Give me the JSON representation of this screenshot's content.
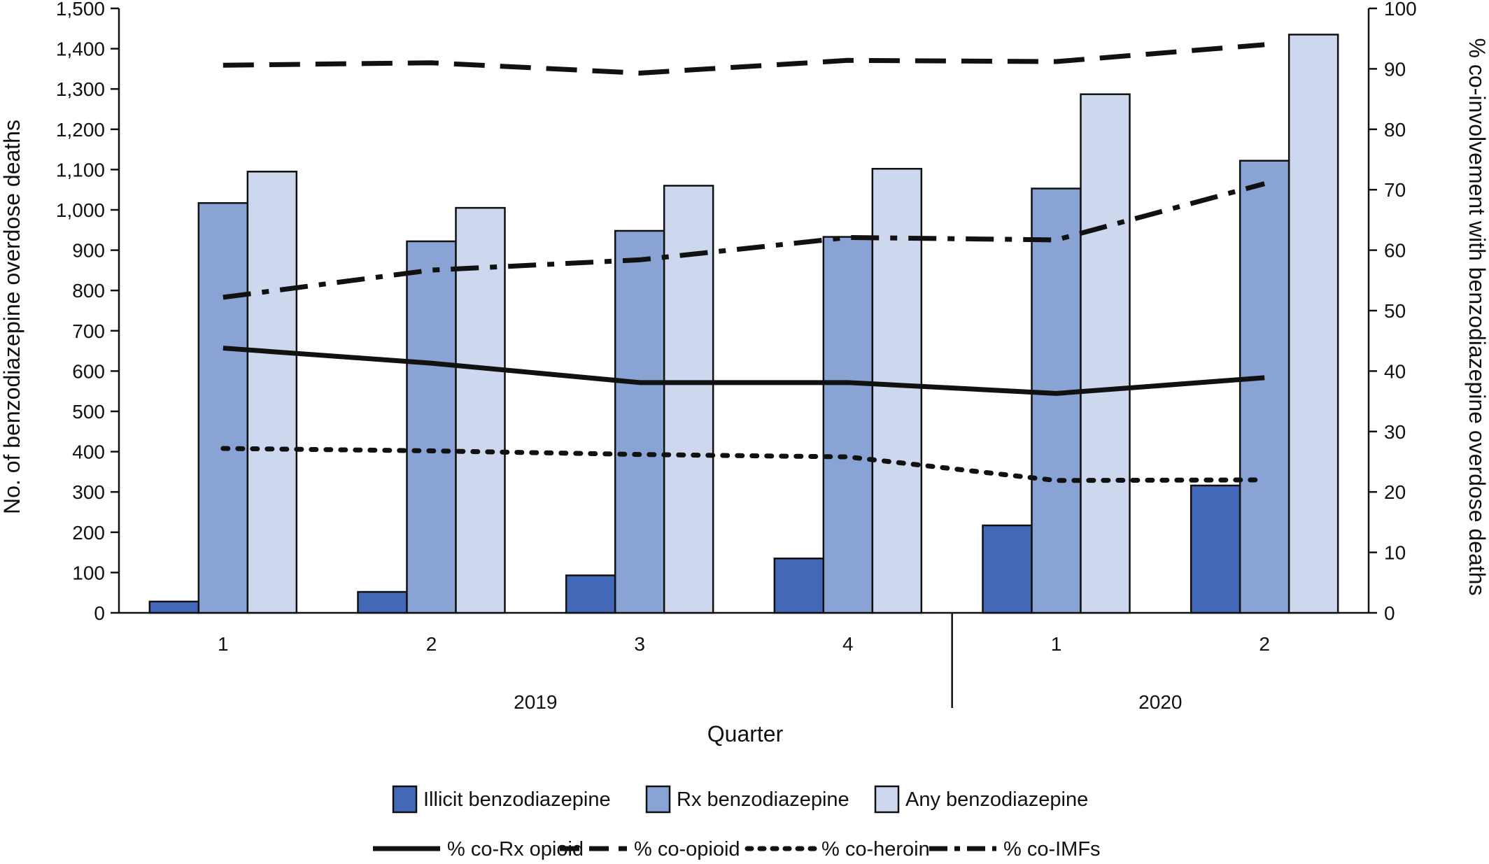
{
  "chart_data": {
    "type": "bar",
    "title": "",
    "xlabel": "Quarter",
    "ylabel": "No. of benzodiazepine overdose deaths",
    "y2label": "% co-involvement with benzodiazepine overdose deaths",
    "categories": [
      "1",
      "2",
      "3",
      "4",
      "1",
      "2"
    ],
    "groups": [
      {
        "label": "2019",
        "count": 4
      },
      {
        "label": "2020",
        "count": 2
      }
    ],
    "ylim": [
      0,
      1500
    ],
    "yticks": [
      "0",
      "100",
      "200",
      "300",
      "400",
      "500",
      "600",
      "700",
      "800",
      "900",
      "1,000",
      "1,100",
      "1,200",
      "1,300",
      "1,400",
      "1,500"
    ],
    "y2lim": [
      0,
      100
    ],
    "y2ticks": [
      "0",
      "10",
      "20",
      "30",
      "40",
      "50",
      "60",
      "70",
      "80",
      "90",
      "100"
    ],
    "grid": false,
    "legend_position": "bottom",
    "series": [
      {
        "name": "Illicit benzodiazepine",
        "values": [
          28,
          52,
          93,
          135,
          217,
          316
        ],
        "color": "#4468b8"
      },
      {
        "name": "Rx benzodiazepine",
        "values": [
          1017,
          922,
          948,
          933,
          1053,
          1122
        ],
        "color": "#8aa3d5"
      },
      {
        "name": "Any benzodiazepine",
        "values": [
          1095,
          1005,
          1060,
          1102,
          1287,
          1435
        ],
        "color": "#cdd8ee"
      }
    ],
    "line_series": [
      {
        "name": "% co-Rx opioid",
        "axis": "right",
        "dash": "solid",
        "values": [
          43.8,
          41.3,
          38.1,
          38.1,
          36.3,
          38.9
        ]
      },
      {
        "name": "% co-opioid",
        "axis": "right",
        "dash": "dashed",
        "values": [
          90.6,
          91.0,
          89.3,
          91.4,
          91.2,
          94.0
        ]
      },
      {
        "name": "% co-heroin",
        "axis": "right",
        "dash": "dotted",
        "values": [
          27.2,
          26.8,
          26.2,
          25.8,
          21.9,
          22.0
        ]
      },
      {
        "name": "% co-IMFs",
        "axis": "right",
        "dash": "dashdot",
        "values": [
          52.2,
          56.7,
          58.4,
          62.1,
          61.7,
          71.0
        ]
      }
    ]
  }
}
